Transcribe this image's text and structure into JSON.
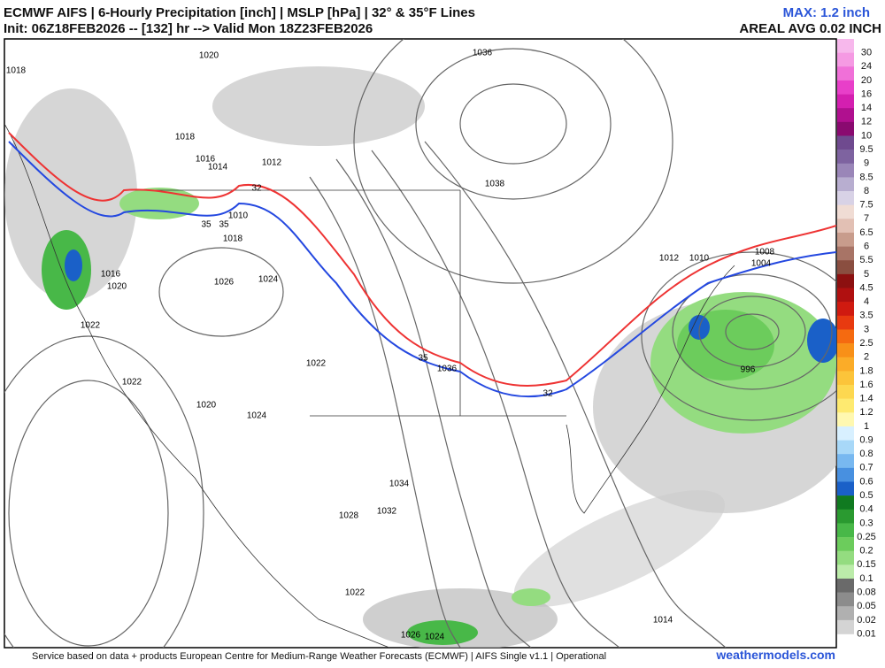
{
  "header": {
    "title": "ECMWF AIFS | 6-Hourly Precipitation [inch] | MSLP [hPa] | 32° & 35°F Lines",
    "subtitle": "Init: 06Z18FEB2026 -- [132] hr --> Valid Mon 18Z23FEB2026",
    "max": "MAX: 1.2 inch",
    "areal_avg": "AREAL AVG 0.02 INCH"
  },
  "isobar_labels": [
    "1018",
    "1020",
    "1036",
    "1018",
    "1016",
    "1014",
    "1012",
    "32",
    "1038",
    "1010",
    "35",
    "35",
    "1018",
    "1016",
    "1020",
    "1026",
    "1024",
    "1022",
    "1022",
    "35",
    "1036",
    "32",
    "1012",
    "1010",
    "1008",
    "1004",
    "996",
    "1022",
    "1020",
    "1024",
    "1034",
    "1032",
    "1028",
    "1022",
    "1026",
    "1024",
    "1014"
  ],
  "colorbar": [
    {
      "label": "30",
      "color": "#f7b8ec"
    },
    {
      "label": "24",
      "color": "#f59ae3"
    },
    {
      "label": "20",
      "color": "#f070d8"
    },
    {
      "label": "16",
      "color": "#e83fc9"
    },
    {
      "label": "14",
      "color": "#d41fb0"
    },
    {
      "label": "12",
      "color": "#b0108f"
    },
    {
      "label": "10",
      "color": "#8a0a70"
    },
    {
      "label": "9.5",
      "color": "#6f4a8f"
    },
    {
      "label": "9",
      "color": "#7e63a0"
    },
    {
      "label": "8.5",
      "color": "#9a86b8"
    },
    {
      "label": "8",
      "color": "#b8aed0"
    },
    {
      "label": "7.5",
      "color": "#d8d2e6"
    },
    {
      "label": "7",
      "color": "#f0dcd4"
    },
    {
      "label": "6.5",
      "color": "#e2c0b4"
    },
    {
      "label": "6",
      "color": "#c89c8c"
    },
    {
      "label": "5.5",
      "color": "#a87466"
    },
    {
      "label": "5",
      "color": "#8a4e40"
    },
    {
      "label": "4.5",
      "color": "#8c1010"
    },
    {
      "label": "4",
      "color": "#b01010"
    },
    {
      "label": "3.5",
      "color": "#d01a10"
    },
    {
      "label": "3",
      "color": "#e83a10"
    },
    {
      "label": "2.5",
      "color": "#f56a10"
    },
    {
      "label": "2",
      "color": "#f89018"
    },
    {
      "label": "1.8",
      "color": "#fbac28"
    },
    {
      "label": "1.6",
      "color": "#fcc43a"
    },
    {
      "label": "1.4",
      "color": "#fdd850"
    },
    {
      "label": "1.2",
      "color": "#feea70"
    },
    {
      "label": "1",
      "color": "#fff8b0"
    },
    {
      "label": "0.9",
      "color": "#d8f0ff"
    },
    {
      "label": "0.8",
      "color": "#a8d8f8"
    },
    {
      "label": "0.7",
      "color": "#78b8f0"
    },
    {
      "label": "0.6",
      "color": "#4890e0"
    },
    {
      "label": "0.5",
      "color": "#1a60c8"
    },
    {
      "label": "0.4",
      "color": "#107a20"
    },
    {
      "label": "0.3",
      "color": "#2a9a30"
    },
    {
      "label": "0.25",
      "color": "#48b848"
    },
    {
      "label": "0.2",
      "color": "#6ccc5c"
    },
    {
      "label": "0.15",
      "color": "#94dc80"
    },
    {
      "label": "0.1",
      "color": "#bcecaa"
    },
    {
      "label": "0.08",
      "color": "#6a6a6a"
    },
    {
      "label": "0.05",
      "color": "#8c8c8c"
    },
    {
      "label": "0.02",
      "color": "#b0b0b0"
    },
    {
      "label": "0.01",
      "color": "#d4d4d4"
    }
  ],
  "footer": {
    "credit": "Service based on data + products European Centre for Medium-Range Weather Forecasts (ECMWF) | AIFS Single v1.1 | Operational",
    "site": "weathermodels.com"
  }
}
